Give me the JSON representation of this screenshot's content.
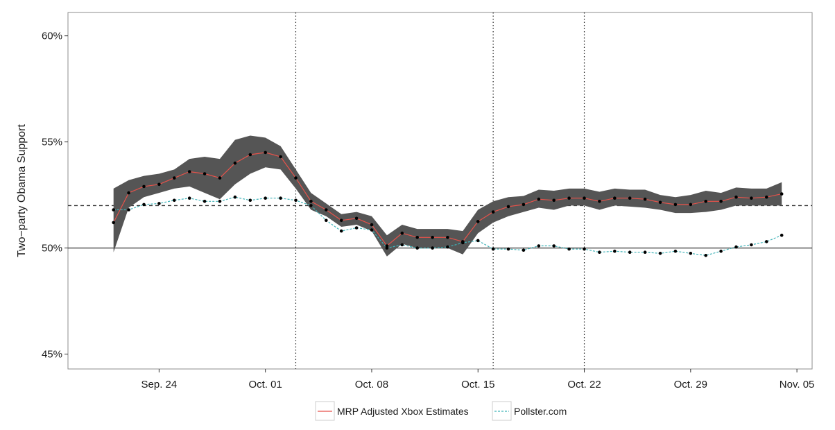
{
  "chart_data": {
    "type": "line",
    "ylabel": "Two−party Obama Support",
    "xlabel": "",
    "ylim": [
      44.3,
      61.1
    ],
    "xlim": [
      "2012-09-18",
      "2012-11-06"
    ],
    "x_ticks": [
      "2012-09-24",
      "2012-10-01",
      "2012-10-08",
      "2012-10-15",
      "2012-10-22",
      "2012-10-29",
      "2012-11-05"
    ],
    "x_tick_labels": [
      "Sep. 24",
      "Oct. 01",
      "Oct. 08",
      "Oct. 15",
      "Oct. 22",
      "Oct. 29",
      "Nov. 05"
    ],
    "y_ticks": [
      45,
      50,
      55,
      60
    ],
    "y_tick_labels": [
      "45%",
      "50%",
      "55%",
      "60%"
    ],
    "grid": false,
    "reference_lines": {
      "solid_horizontal": 50,
      "dashed_horizontal": 52,
      "dotted_vertical": [
        "2012-10-03",
        "2012-10-16",
        "2012-10-22"
      ]
    },
    "legend_position": "bottom",
    "series": [
      {
        "name": "MRP Adjusted Xbox Estimates",
        "color": "#e8524a",
        "style": "solid",
        "points": [
          [
            "2012-09-21",
            51.2
          ],
          [
            "2012-09-22",
            52.6
          ],
          [
            "2012-09-23",
            52.9
          ],
          [
            "2012-09-24",
            53.0
          ],
          [
            "2012-09-25",
            53.3
          ],
          [
            "2012-09-26",
            53.6
          ],
          [
            "2012-09-27",
            53.5
          ],
          [
            "2012-09-28",
            53.3
          ],
          [
            "2012-09-29",
            54.0
          ],
          [
            "2012-09-30",
            54.4
          ],
          [
            "2012-10-01",
            54.5
          ],
          [
            "2012-10-02",
            54.3
          ],
          [
            "2012-10-03",
            53.3
          ],
          [
            "2012-10-04",
            52.2
          ],
          [
            "2012-10-05",
            51.8
          ],
          [
            "2012-10-06",
            51.3
          ],
          [
            "2012-10-07",
            51.4
          ],
          [
            "2012-10-08",
            51.1
          ],
          [
            "2012-10-09",
            50.1
          ],
          [
            "2012-10-10",
            50.7
          ],
          [
            "2012-10-11",
            50.5
          ],
          [
            "2012-10-12",
            50.5
          ],
          [
            "2012-10-13",
            50.5
          ],
          [
            "2012-10-14",
            50.3
          ],
          [
            "2012-10-15",
            51.25
          ],
          [
            "2012-10-16",
            51.7
          ],
          [
            "2012-10-17",
            51.95
          ],
          [
            "2012-10-18",
            52.05
          ],
          [
            "2012-10-19",
            52.3
          ],
          [
            "2012-10-20",
            52.25
          ],
          [
            "2012-10-21",
            52.35
          ],
          [
            "2012-10-22",
            52.35
          ],
          [
            "2012-10-23",
            52.2
          ],
          [
            "2012-10-24",
            52.35
          ],
          [
            "2012-10-25",
            52.35
          ],
          [
            "2012-10-26",
            52.3
          ],
          [
            "2012-10-27",
            52.15
          ],
          [
            "2012-10-28",
            52.05
          ],
          [
            "2012-10-29",
            52.05
          ],
          [
            "2012-10-30",
            52.2
          ],
          [
            "2012-10-31",
            52.2
          ],
          [
            "2012-11-01",
            52.4
          ],
          [
            "2012-11-02",
            52.35
          ],
          [
            "2012-11-03",
            52.4
          ],
          [
            "2012-11-04",
            52.55
          ]
        ],
        "ci_lower": [
          49.8,
          51.9,
          52.4,
          52.6,
          52.8,
          52.9,
          52.6,
          52.3,
          53.0,
          53.5,
          53.8,
          53.7,
          52.8,
          51.8,
          51.5,
          51.0,
          51.1,
          50.8,
          49.6,
          50.2,
          50.0,
          50.0,
          50.0,
          49.7,
          50.7,
          51.2,
          51.5,
          51.7,
          51.9,
          51.8,
          52.0,
          52.0,
          51.8,
          52.0,
          51.95,
          51.9,
          51.8,
          51.65,
          51.65,
          51.7,
          51.8,
          52.0,
          52.0,
          52.0,
          52.0
        ],
        "ci_upper": [
          52.8,
          53.2,
          53.4,
          53.5,
          53.7,
          54.2,
          54.3,
          54.2,
          55.1,
          55.3,
          55.2,
          54.8,
          53.7,
          52.6,
          52.1,
          51.6,
          51.7,
          51.5,
          50.6,
          51.1,
          50.9,
          50.9,
          50.9,
          50.8,
          51.8,
          52.2,
          52.4,
          52.45,
          52.75,
          52.7,
          52.8,
          52.8,
          52.65,
          52.8,
          52.75,
          52.75,
          52.5,
          52.4,
          52.5,
          52.7,
          52.6,
          52.85,
          52.8,
          52.8,
          53.1
        ]
      },
      {
        "name": "Pollster.com",
        "color": "#3fb3b8",
        "style": "dashed",
        "points": [
          [
            "2012-09-21",
            51.8
          ],
          [
            "2012-09-22",
            51.8
          ],
          [
            "2012-09-23",
            52.05
          ],
          [
            "2012-09-24",
            52.1
          ],
          [
            "2012-09-25",
            52.25
          ],
          [
            "2012-09-26",
            52.35
          ],
          [
            "2012-09-27",
            52.2
          ],
          [
            "2012-09-28",
            52.2
          ],
          [
            "2012-09-29",
            52.4
          ],
          [
            "2012-09-30",
            52.25
          ],
          [
            "2012-10-01",
            52.35
          ],
          [
            "2012-10-02",
            52.35
          ],
          [
            "2012-10-03",
            52.25
          ],
          [
            "2012-10-04",
            52.0
          ],
          [
            "2012-10-05",
            51.3
          ],
          [
            "2012-10-06",
            50.8
          ],
          [
            "2012-10-07",
            50.95
          ],
          [
            "2012-10-08",
            50.85
          ],
          [
            "2012-10-09",
            50.0
          ],
          [
            "2012-10-10",
            50.15
          ],
          [
            "2012-10-11",
            50.0
          ],
          [
            "2012-10-12",
            50.0
          ],
          [
            "2012-10-13",
            50.05
          ],
          [
            "2012-10-14",
            50.25
          ],
          [
            "2012-10-15",
            50.35
          ],
          [
            "2012-10-16",
            49.95
          ],
          [
            "2012-10-17",
            49.95
          ],
          [
            "2012-10-18",
            49.9
          ],
          [
            "2012-10-19",
            50.1
          ],
          [
            "2012-10-20",
            50.1
          ],
          [
            "2012-10-21",
            49.95
          ],
          [
            "2012-10-22",
            49.95
          ],
          [
            "2012-10-23",
            49.8
          ],
          [
            "2012-10-24",
            49.85
          ],
          [
            "2012-10-25",
            49.8
          ],
          [
            "2012-10-26",
            49.8
          ],
          [
            "2012-10-27",
            49.75
          ],
          [
            "2012-10-28",
            49.85
          ],
          [
            "2012-10-29",
            49.75
          ],
          [
            "2012-10-30",
            49.65
          ],
          [
            "2012-10-31",
            49.85
          ],
          [
            "2012-11-01",
            50.05
          ],
          [
            "2012-11-02",
            50.15
          ],
          [
            "2012-11-03",
            50.3
          ],
          [
            "2012-11-04",
            50.6
          ]
        ]
      }
    ]
  },
  "legend": {
    "items": [
      {
        "label": "MRP Adjusted Xbox Estimates",
        "color": "#e8524a",
        "style": "solid"
      },
      {
        "label": "Pollster.com",
        "color": "#3fb3b8",
        "style": "dashed"
      }
    ]
  },
  "colors": {
    "ci_band": "#555555",
    "points": "#000000",
    "reference_line": "#333333"
  }
}
